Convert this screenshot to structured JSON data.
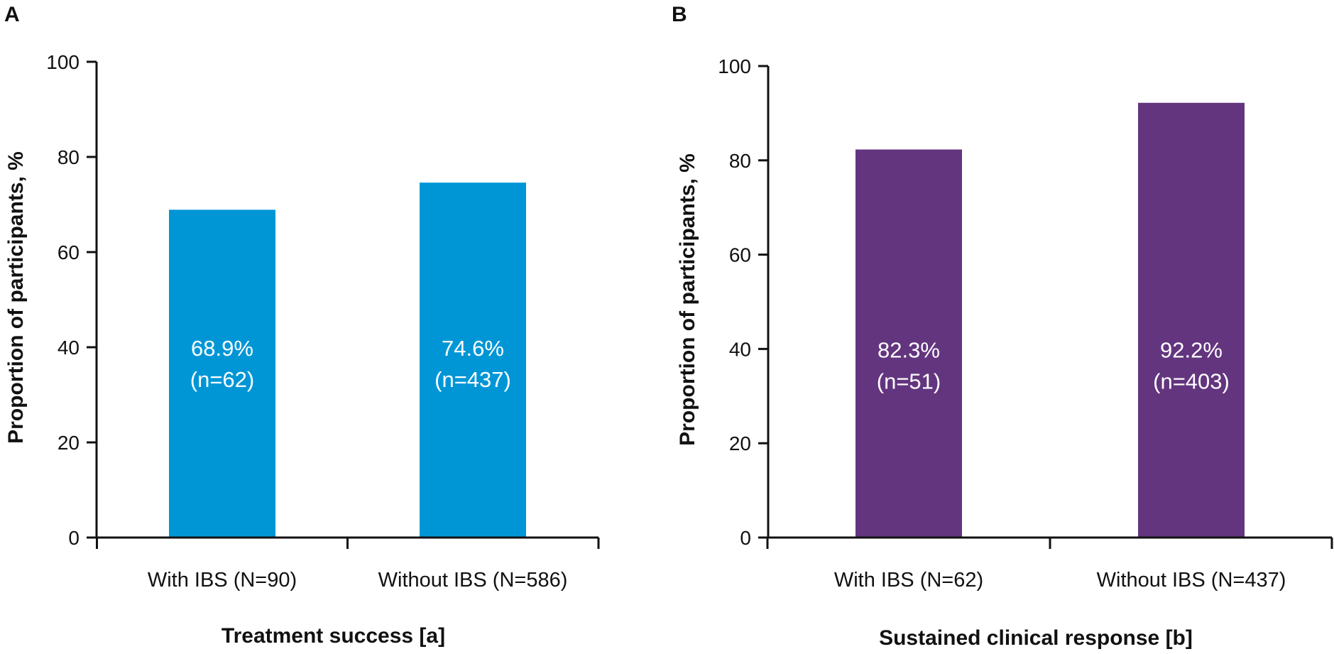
{
  "chart_data": [
    {
      "panel": "A",
      "type": "bar",
      "categories": [
        "With IBS (N=90)",
        "Without IBS (N=586)"
      ],
      "values": [
        68.9,
        74.6
      ],
      "data_labels": [
        [
          "68.9%",
          "(n=62)"
        ],
        [
          "74.6%",
          "(n=437)"
        ]
      ],
      "xlabel": "Treatment success [a]",
      "ylabel": "Proportion of participants, %",
      "ylim": [
        0,
        100
      ],
      "yticks": [
        0,
        20,
        40,
        60,
        80,
        100
      ],
      "yticklabels": [
        "0",
        "20",
        "40",
        "60",
        "80",
        "100"
      ],
      "color": "#0096d6"
    },
    {
      "panel": "B",
      "type": "bar",
      "categories": [
        "With IBS (N=62)",
        "Without IBS (N=437)"
      ],
      "values": [
        82.3,
        92.2
      ],
      "data_labels": [
        [
          "82.3%",
          "(n=51)"
        ],
        [
          "92.2%",
          "(n=403)"
        ]
      ],
      "xlabel": "Sustained clinical response [b]",
      "ylabel": "Proportion of participants, %",
      "ylim": [
        0,
        100
      ],
      "yticks": [
        0,
        20,
        40,
        60,
        80,
        100
      ],
      "yticklabels": [
        "0",
        "20",
        "40",
        "60",
        "80",
        "100"
      ],
      "color": "#63357f"
    }
  ]
}
